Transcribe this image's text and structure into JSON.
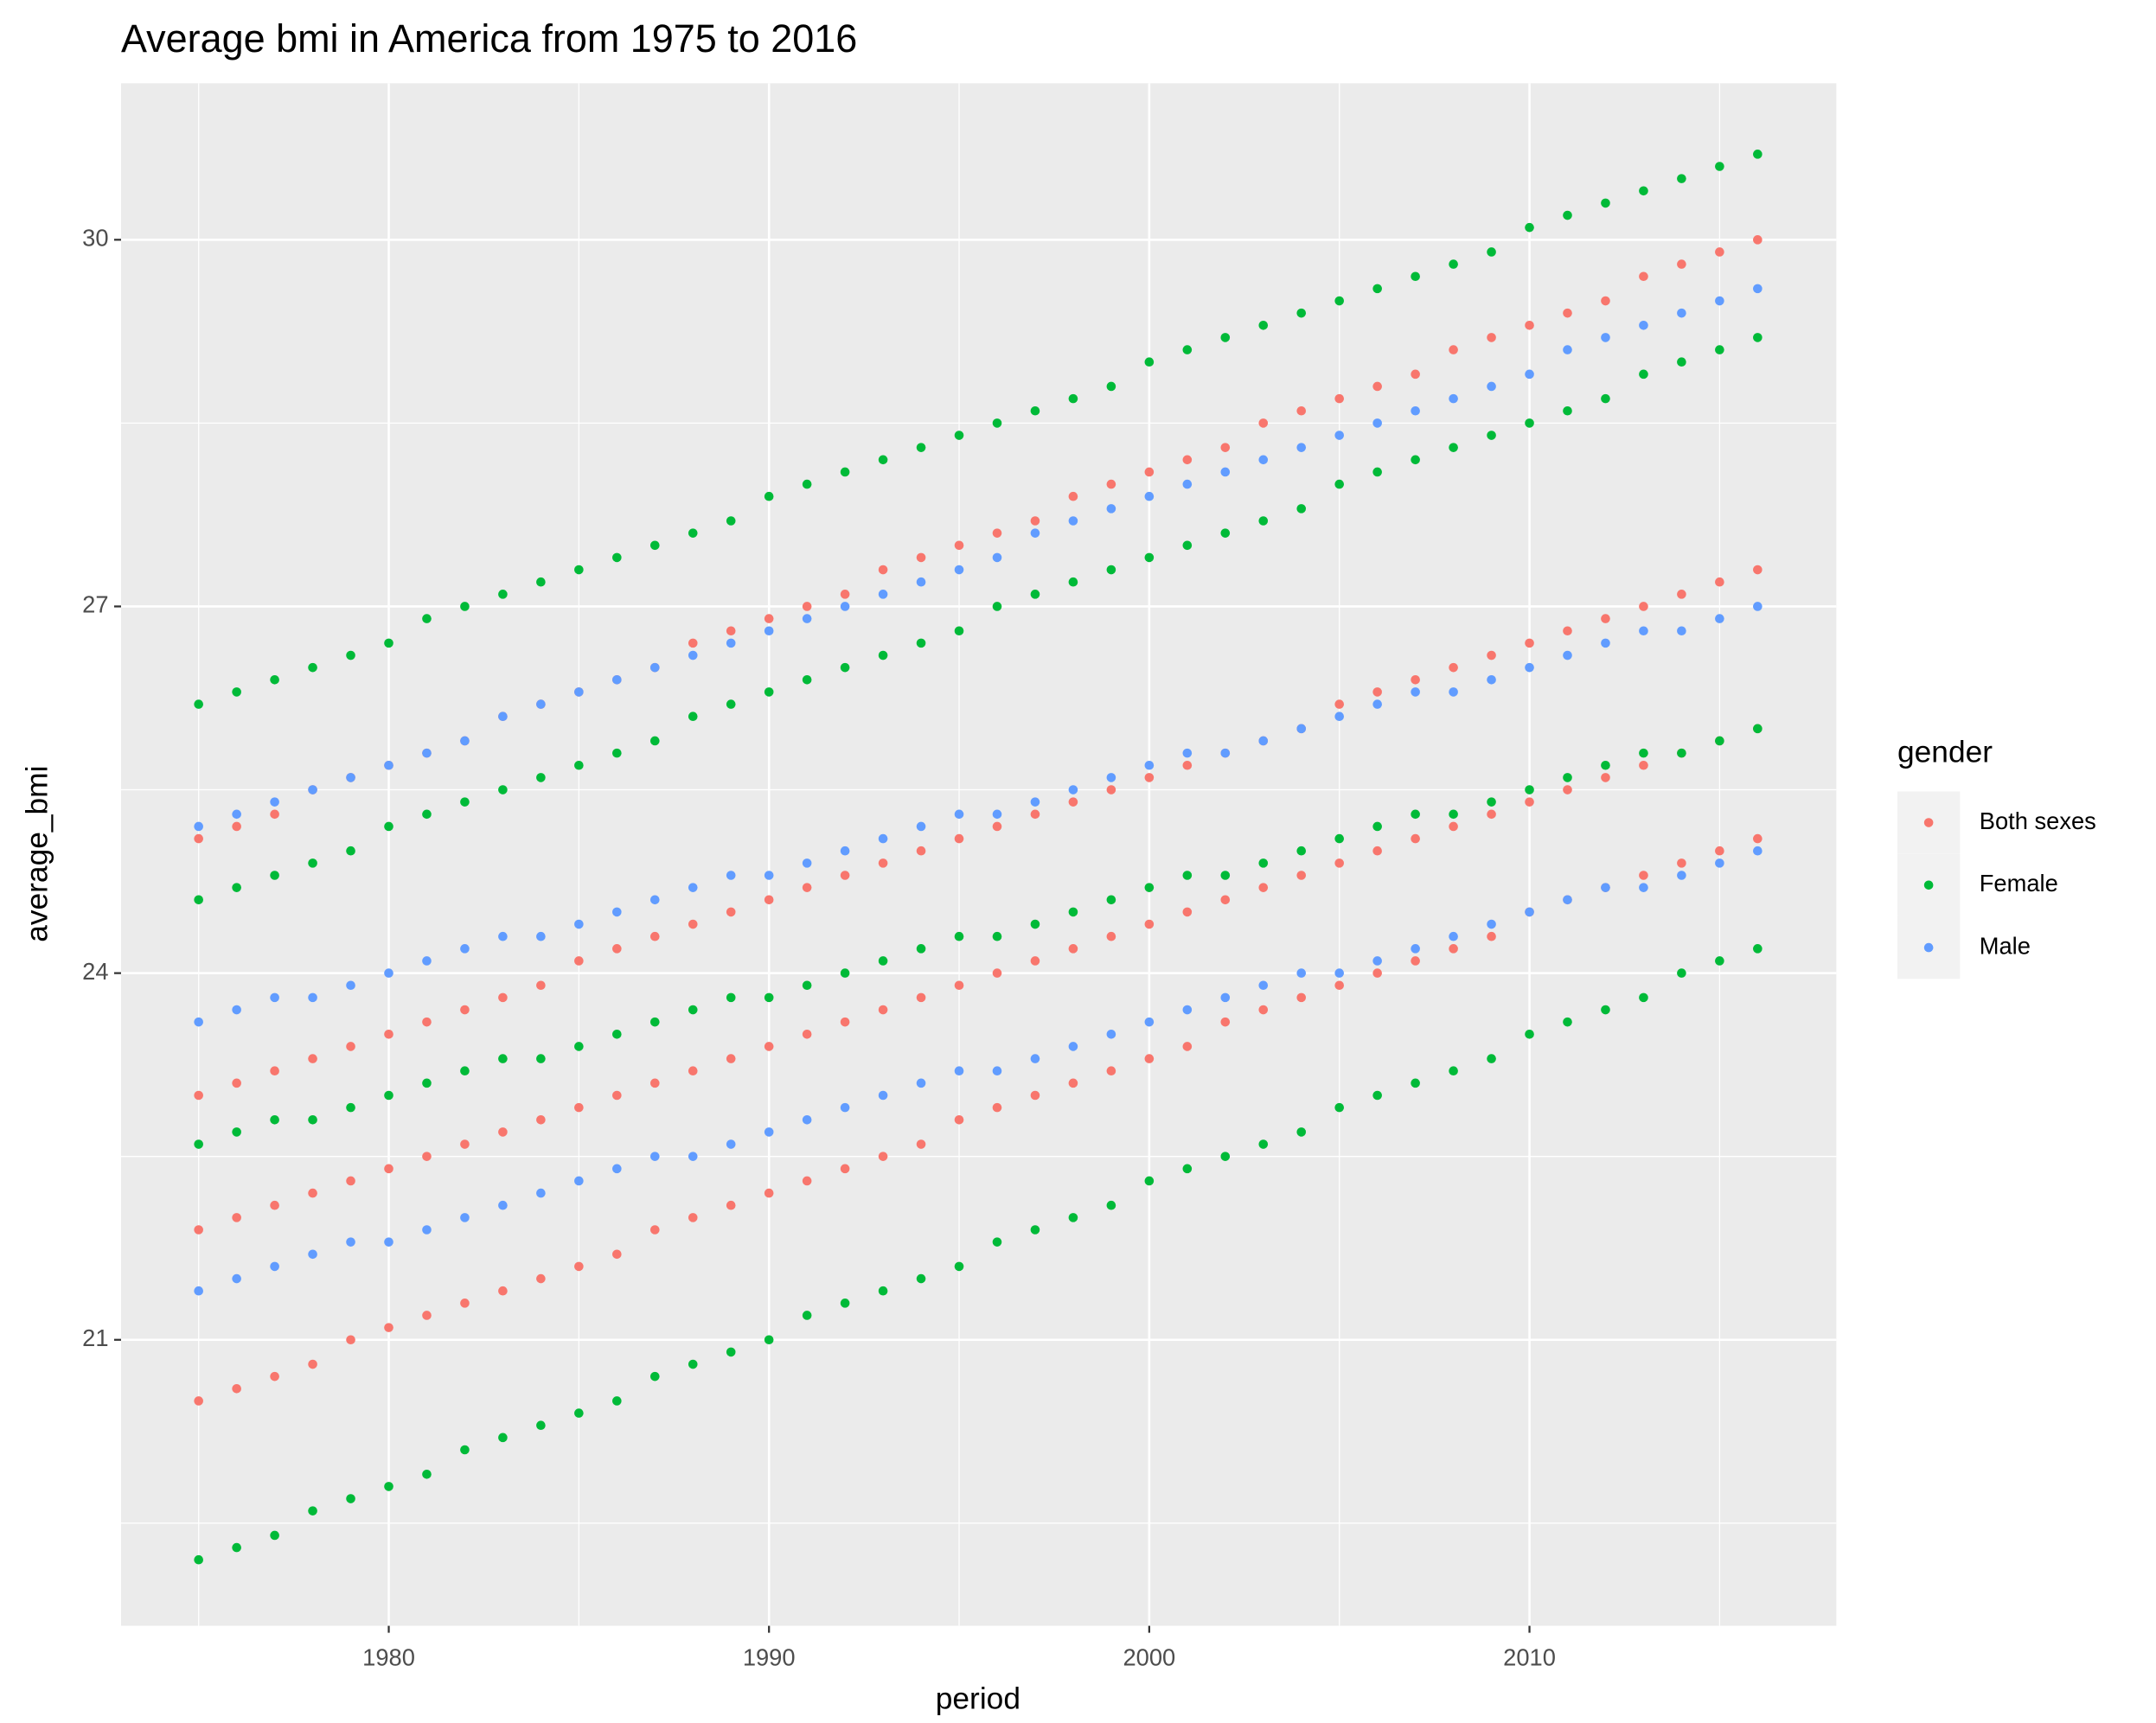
{
  "chart_data": {
    "type": "scatter",
    "title": "Average bmi in America from 1975 to 2016",
    "x_label": "period",
    "y_label": "average_bmi",
    "legend_title": "gender",
    "legend": "right",
    "grid": true,
    "xlim": [
      1972.96,
      2018.07
    ],
    "ylim": [
      18.66,
      31.28
    ],
    "xticks": [
      1980,
      1990,
      2000,
      2010
    ],
    "yticks": [
      21,
      24,
      27,
      30
    ],
    "series": [
      {
        "name": "Both sexes",
        "color": "#F8766D",
        "x": [
          1975,
          1976,
          1977,
          1978,
          1979,
          1980,
          1981,
          1982,
          1983,
          1984,
          1985,
          1986,
          1987,
          1988,
          1989,
          1990,
          1991,
          1992,
          1993,
          1994,
          1995,
          1996,
          1997,
          1998,
          1999,
          2000,
          2001,
          2002,
          2003,
          2004,
          2005,
          2006,
          2007,
          2008,
          2009,
          2010,
          2011,
          2012,
          2013,
          2014,
          2015,
          2016,
          1975,
          1976,
          1977,
          1978,
          1979,
          1980,
          1981,
          1982,
          1983,
          1984,
          1985,
          1986,
          1987,
          1988,
          1989,
          1990,
          1991,
          1992,
          1993,
          1994,
          1995,
          1996,
          1997,
          1998,
          1999,
          2000,
          2001,
          2002,
          2003,
          2004,
          2005,
          2006,
          2007,
          2008,
          2009,
          2010,
          2011,
          2012,
          2013,
          2014,
          2015,
          2016,
          1975,
          1976,
          1977,
          1978,
          1979,
          1980,
          1981,
          1982,
          1983,
          1984,
          1985,
          1986,
          1987,
          1988,
          1989,
          1990,
          1991,
          1992,
          1993,
          1994,
          1995,
          1996,
          1997,
          1998,
          1999,
          2000,
          2001,
          2002,
          2003,
          2004,
          2005,
          2006,
          2007,
          2008,
          2009,
          2010,
          2011,
          2012,
          2013,
          2014,
          2015,
          2016,
          1975,
          1976,
          1977,
          1978,
          1979,
          1980,
          1981,
          1982,
          1983,
          1984,
          1985,
          1986,
          1987,
          1988,
          1989,
          1990,
          1991,
          1992,
          1993,
          1994,
          1995,
          1996,
          1997,
          1998,
          1999,
          2000,
          2001,
          2002,
          2003,
          2004,
          2005,
          2006,
          2007,
          2008,
          2009,
          2010,
          2011,
          2012,
          2013,
          2014,
          2015,
          2016
        ],
        "values": [
          20.5,
          20.6,
          20.7,
          20.8,
          21.0,
          21.1,
          21.2,
          21.3,
          21.4,
          21.5,
          21.6,
          21.7,
          21.9,
          22.0,
          22.1,
          22.2,
          22.3,
          22.4,
          22.5,
          22.6,
          22.8,
          22.9,
          23.0,
          23.1,
          23.2,
          23.3,
          23.4,
          23.6,
          23.7,
          23.8,
          23.9,
          24.0,
          24.1,
          24.2,
          24.3,
          24.5,
          24.6,
          24.7,
          24.8,
          24.9,
          25.0,
          25.1,
          25.1,
          25.2,
          25.3,
          25.5,
          25.6,
          25.7,
          25.8,
          25.9,
          26.1,
          26.2,
          26.3,
          26.4,
          26.5,
          26.7,
          26.8,
          26.9,
          27.0,
          27.1,
          27.3,
          27.4,
          27.5,
          27.6,
          27.7,
          27.9,
          28.0,
          28.1,
          28.2,
          28.3,
          28.5,
          28.6,
          28.7,
          28.8,
          28.9,
          29.1,
          29.2,
          29.3,
          29.4,
          29.5,
          29.7,
          29.8,
          29.9,
          30.0,
          23.0,
          23.1,
          23.2,
          23.3,
          23.4,
          23.5,
          23.6,
          23.7,
          23.8,
          23.9,
          24.1,
          24.2,
          24.3,
          24.4,
          24.5,
          24.6,
          24.7,
          24.8,
          24.9,
          25.0,
          25.1,
          25.2,
          25.3,
          25.4,
          25.5,
          25.6,
          25.7,
          25.8,
          25.9,
          26.0,
          26.2,
          26.3,
          26.4,
          26.5,
          26.6,
          26.7,
          26.8,
          26.9,
          27.0,
          27.1,
          27.2,
          27.3,
          21.9,
          22.0,
          22.1,
          22.2,
          22.3,
          22.4,
          22.5,
          22.6,
          22.7,
          22.8,
          22.9,
          23.0,
          23.1,
          23.2,
          23.3,
          23.4,
          23.5,
          23.6,
          23.7,
          23.8,
          23.9,
          24.0,
          24.1,
          24.2,
          24.3,
          24.4,
          24.5,
          24.6,
          24.7,
          24.8,
          24.9,
          25.0,
          25.1,
          25.2,
          25.3,
          25.4,
          25.5,
          25.6,
          25.7,
          25.8,
          25.9,
          26.0
        ]
      },
      {
        "name": "Female",
        "color": "#00BA38",
        "x": [
          1975,
          1976,
          1977,
          1978,
          1979,
          1980,
          1981,
          1982,
          1983,
          1984,
          1985,
          1986,
          1987,
          1988,
          1989,
          1990,
          1991,
          1992,
          1993,
          1994,
          1995,
          1996,
          1997,
          1998,
          1999,
          2000,
          2001,
          2002,
          2003,
          2004,
          2005,
          2006,
          2007,
          2008,
          2009,
          2010,
          2011,
          2012,
          2013,
          2014,
          2015,
          2016,
          1975,
          1976,
          1977,
          1978,
          1979,
          1980,
          1981,
          1982,
          1983,
          1984,
          1985,
          1986,
          1987,
          1988,
          1989,
          1990,
          1991,
          1992,
          1993,
          1994,
          1995,
          1996,
          1997,
          1998,
          1999,
          2000,
          2001,
          2002,
          2003,
          2004,
          2005,
          2006,
          2007,
          2008,
          2009,
          2010,
          2011,
          2012,
          2013,
          2014,
          2015,
          2016,
          1975,
          1976,
          1977,
          1978,
          1979,
          1980,
          1981,
          1982,
          1983,
          1984,
          1985,
          1986,
          1987,
          1988,
          1989,
          1990,
          1991,
          1992,
          1993,
          1994,
          1995,
          1996,
          1997,
          1998,
          1999,
          2000,
          2001,
          2002,
          2003,
          2004,
          2005,
          2006,
          2007,
          2008,
          2009,
          2010,
          2011,
          2012,
          2013,
          2014,
          2015,
          2016,
          1975,
          1976,
          1977,
          1978,
          1979,
          1980,
          1981,
          1982,
          1983,
          1984,
          1985,
          1986,
          1987,
          1988,
          1989,
          1990,
          1991,
          1992,
          1993,
          1994,
          1995,
          1996,
          1997,
          1998,
          1999,
          2000,
          2001,
          2002,
          2003,
          2004,
          2005,
          2006,
          2007,
          2008,
          2009,
          2010,
          2011,
          2012,
          2013,
          2014,
          2015,
          2016
        ],
        "values": [
          26.2,
          26.3,
          26.4,
          26.5,
          26.6,
          26.7,
          26.9,
          27.0,
          27.1,
          27.2,
          27.3,
          27.4,
          27.5,
          27.6,
          27.7,
          27.9,
          28.0,
          28.1,
          28.2,
          28.3,
          28.4,
          28.5,
          28.6,
          28.7,
          28.8,
          29.0,
          29.1,
          29.2,
          29.3,
          29.4,
          29.5,
          29.6,
          29.7,
          29.8,
          29.9,
          30.1,
          30.2,
          30.3,
          30.4,
          30.5,
          30.6,
          30.7,
          19.2,
          19.3,
          19.4,
          19.6,
          19.7,
          19.8,
          19.9,
          20.1,
          20.2,
          20.3,
          20.4,
          20.5,
          20.7,
          20.8,
          20.9,
          21.0,
          21.2,
          21.3,
          21.4,
          21.5,
          21.6,
          21.8,
          21.9,
          22.0,
          22.1,
          22.3,
          22.4,
          22.5,
          22.6,
          22.7,
          22.9,
          23.0,
          23.1,
          23.2,
          23.3,
          23.5,
          23.6,
          23.7,
          23.8,
          24.0,
          24.1,
          24.2,
          24.6,
          24.7,
          24.8,
          24.9,
          25.0,
          25.2,
          25.3,
          25.4,
          25.5,
          25.6,
          25.7,
          25.8,
          25.9,
          26.1,
          26.2,
          26.3,
          26.4,
          26.5,
          26.6,
          26.7,
          26.8,
          27.0,
          27.1,
          27.2,
          27.3,
          27.4,
          27.5,
          27.6,
          27.7,
          27.8,
          28.0,
          28.1,
          28.2,
          28.3,
          28.4,
          28.5,
          28.6,
          28.7,
          28.9,
          29.0,
          29.1,
          29.2,
          22.6,
          22.7,
          22.8,
          22.8,
          22.9,
          23.0,
          23.1,
          23.2,
          23.3,
          23.3,
          23.4,
          23.5,
          23.6,
          23.7,
          23.8,
          23.8,
          23.9,
          24.0,
          24.1,
          24.2,
          24.3,
          24.3,
          24.4,
          24.5,
          24.6,
          24.7,
          24.8,
          24.8,
          24.9,
          25.0,
          25.1,
          25.2,
          25.3,
          25.3,
          25.4,
          25.5,
          25.6,
          25.7,
          25.8,
          25.8,
          25.9,
          26.0
        ]
      },
      {
        "name": "Male",
        "color": "#619CFF",
        "x": [
          1975,
          1976,
          1977,
          1978,
          1979,
          1980,
          1981,
          1982,
          1983,
          1984,
          1985,
          1986,
          1987,
          1988,
          1989,
          1990,
          1991,
          1992,
          1993,
          1994,
          1995,
          1996,
          1997,
          1998,
          1999,
          2000,
          2001,
          2002,
          2003,
          2004,
          2005,
          2006,
          2007,
          2008,
          2009,
          2010,
          2011,
          2012,
          2013,
          2014,
          2015,
          2016,
          1975,
          1976,
          1977,
          1978,
          1979,
          1980,
          1981,
          1982,
          1983,
          1984,
          1985,
          1986,
          1987,
          1988,
          1989,
          1990,
          1991,
          1992,
          1993,
          1994,
          1995,
          1996,
          1997,
          1998,
          1999,
          2000,
          2001,
          2002,
          2003,
          2004,
          2005,
          2006,
          2007,
          2008,
          2009,
          2010,
          2011,
          2012,
          2013,
          2014,
          2015,
          2016,
          1975,
          1976,
          1977,
          1978,
          1979,
          1980,
          1981,
          1982,
          1983,
          1984,
          1985,
          1986,
          1987,
          1988,
          1989,
          1990,
          1991,
          1992,
          1993,
          1994,
          1995,
          1996,
          1997,
          1998,
          1999,
          2000,
          2001,
          2002,
          2003,
          2004,
          2005,
          2006,
          2007,
          2008,
          2009,
          2010,
          2011,
          2012,
          2013,
          2014,
          2015,
          2016
        ],
        "values": [
          25.2,
          25.3,
          25.4,
          25.5,
          25.6,
          25.7,
          25.8,
          25.9,
          26.1,
          26.2,
          26.3,
          26.4,
          26.5,
          26.6,
          26.7,
          26.8,
          26.9,
          27.0,
          27.1,
          27.2,
          27.3,
          27.4,
          27.6,
          27.7,
          27.8,
          27.9,
          28.0,
          28.1,
          28.2,
          28.3,
          28.4,
          28.5,
          28.6,
          28.7,
          28.8,
          28.9,
          29.1,
          29.2,
          29.3,
          29.4,
          29.5,
          29.6,
          21.4,
          21.5,
          21.6,
          21.7,
          21.8,
          21.8,
          21.9,
          22.0,
          22.1,
          22.2,
          22.3,
          22.4,
          22.5,
          22.5,
          22.6,
          22.7,
          22.8,
          22.9,
          23.0,
          23.1,
          23.2,
          23.2,
          23.3,
          23.4,
          23.5,
          23.6,
          23.7,
          23.8,
          23.9,
          24.0,
          24.0,
          24.1,
          24.2,
          24.3,
          24.4,
          24.5,
          24.6,
          24.7,
          24.7,
          24.8,
          24.9,
          25.0,
          23.6,
          23.7,
          23.8,
          23.8,
          23.9,
          24.0,
          24.1,
          24.2,
          24.3,
          24.3,
          24.4,
          24.5,
          24.6,
          24.7,
          24.8,
          24.8,
          24.9,
          25.0,
          25.1,
          25.2,
          25.3,
          25.3,
          25.4,
          25.5,
          25.6,
          25.7,
          25.8,
          25.8,
          25.9,
          26.0,
          26.1,
          26.2,
          26.3,
          26.3,
          26.4,
          26.5,
          26.6,
          26.7,
          26.8,
          26.8,
          26.9,
          27.0
        ]
      }
    ]
  }
}
